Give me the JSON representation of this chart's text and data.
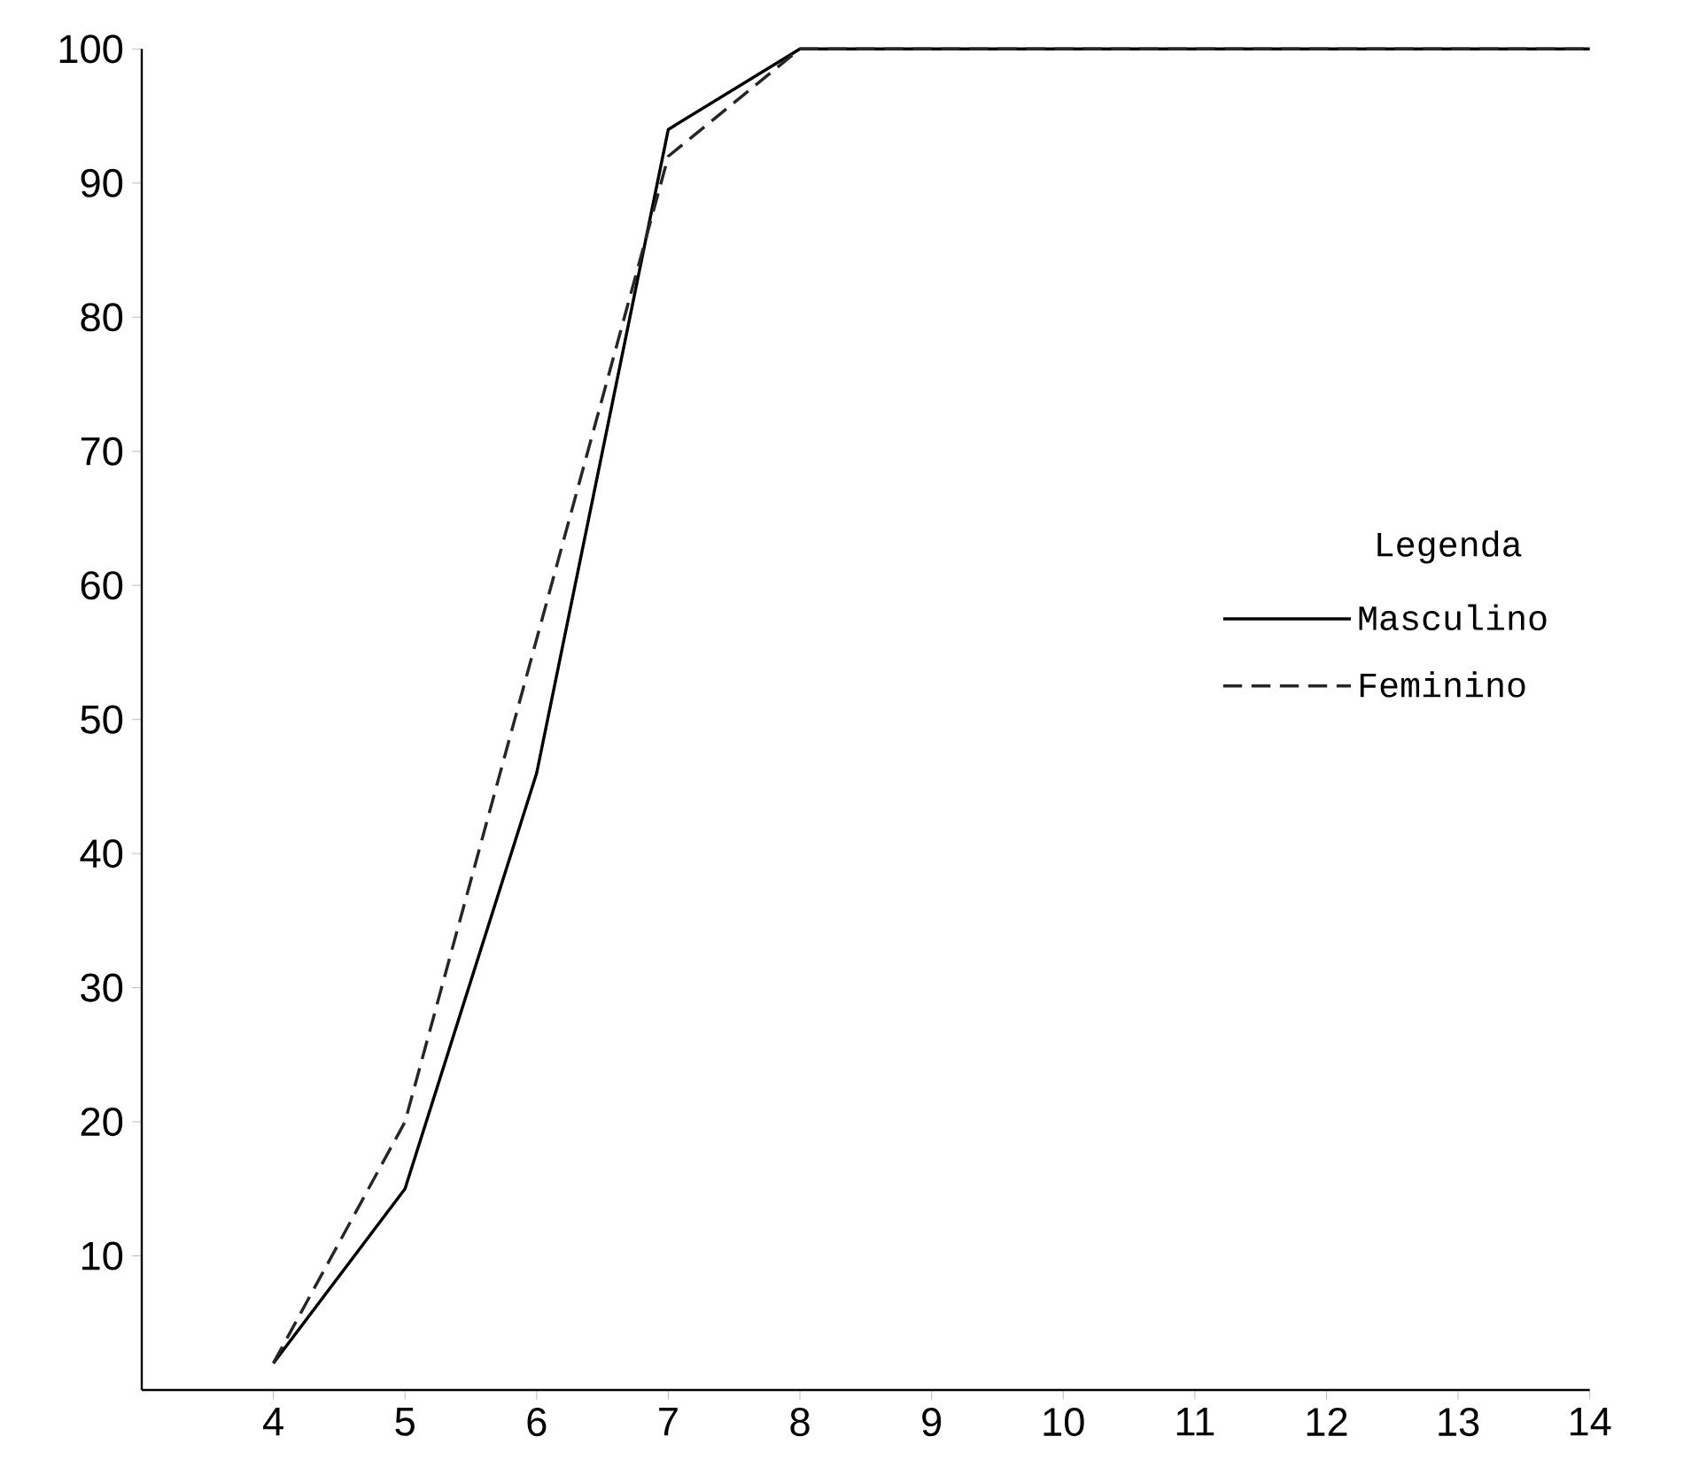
{
  "chart_data": {
    "type": "line",
    "x": [
      4,
      5,
      6,
      7,
      8,
      9,
      10,
      11,
      12,
      13,
      14
    ],
    "series": [
      {
        "name": "Masculino",
        "color": "#000000",
        "line_style": "solid",
        "values": [
          2,
          15,
          46,
          94,
          100,
          100,
          100,
          100,
          100,
          100,
          100
        ]
      },
      {
        "name": "Feminino",
        "color": "#262626",
        "line_style": "dashed",
        "values": [
          2,
          20,
          56,
          92,
          100,
          100,
          100,
          100,
          100,
          100,
          100
        ]
      }
    ],
    "legend_title": "Legenda",
    "legend": "right",
    "xlim": [
      3,
      14
    ],
    "xticks": [
      4,
      5,
      6,
      7,
      8,
      9,
      10,
      11,
      12,
      13,
      14
    ],
    "ylim": [
      0,
      100
    ],
    "yticks": [
      10,
      20,
      30,
      40,
      50,
      60,
      70,
      80,
      90,
      100
    ]
  }
}
